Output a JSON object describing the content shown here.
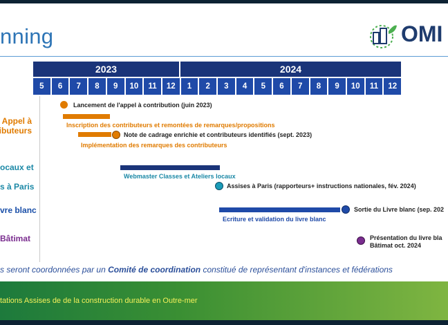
{
  "slide": {
    "title": "nning",
    "logo_text": "OMI"
  },
  "timeline": {
    "years": [
      {
        "label": "2023"
      },
      {
        "label": "2024"
      }
    ],
    "months": [
      "5",
      "6",
      "7",
      "8",
      "9",
      "10",
      "11",
      "12",
      "1",
      "2",
      "3",
      "4",
      "5",
      "6",
      "7",
      "8",
      "9",
      "10",
      "11",
      "12"
    ]
  },
  "categories": [
    {
      "line1": "Appel à",
      "line2": "ributeurs",
      "color": "#e07b00"
    },
    {
      "line1": "ocaux et",
      "line2": "",
      "color": "#1b88a6"
    },
    {
      "line1": "s à Paris",
      "line2": "",
      "color": "#1b88a6"
    },
    {
      "line1": "vre blanc",
      "line2": "",
      "color": "#1a4fa8"
    },
    {
      "line1": "Bâtimat",
      "line2": "",
      "color": "#7a2d8f"
    }
  ],
  "events": {
    "launch": "Lancement de l'appel à contribution (juin 2023)",
    "inscription": "Inscription des contributeurs et remontées de remarques/propositions",
    "note_cadrage": "Note de cadrage enrichie et contributeurs identifiés (sept. 2023)",
    "implementation": "Implémentation des remarques des contributeurs",
    "webmaster": "Webmaster Classes et Ateliers locaux",
    "assises": "Assises à Paris (rapporteurs+ instructions nationales, fév. 2024)",
    "sortie": "Sortie du Livre blanc (sep. 202",
    "ecriture": "Ecriture et validation du livre blanc",
    "presentation_line1": "Présentation du livre bla",
    "presentation_line2": "Bâtimat oct. 2024"
  },
  "colors": {
    "orange": "#e07b00",
    "navy": "#1a3479",
    "teal": "#1b88a6",
    "blue": "#1f4aa8",
    "purple": "#7a2d8f"
  },
  "note": {
    "part1": "s seront coordonnées par un ",
    "bold": "Comité de coordination",
    "part2": " constitué de représentant d'instances et fédérations"
  },
  "footer": {
    "text": "tations Assises de de la construction durable en Outre-mer"
  }
}
